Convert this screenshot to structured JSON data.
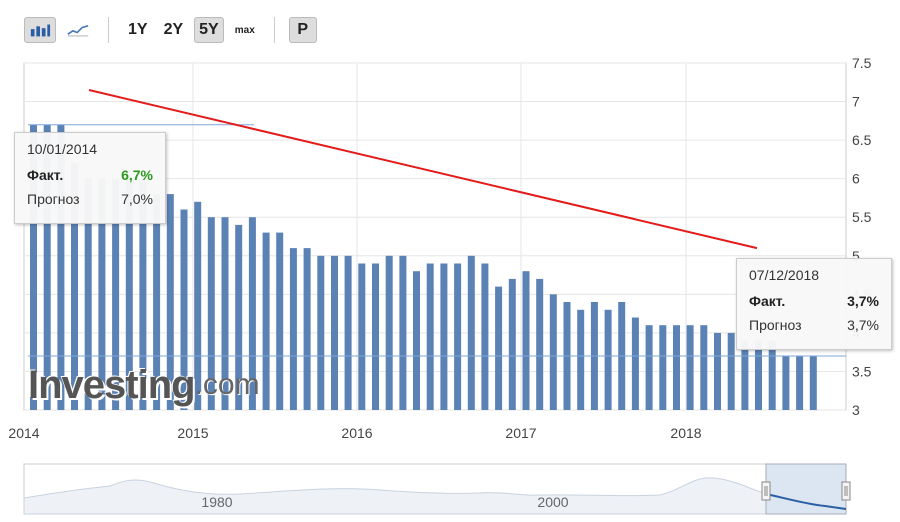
{
  "toolbar": {
    "bar_icon": "bar-chart-icon",
    "line_icon": "line-chart-icon",
    "ranges": [
      "1Y",
      "2Y",
      "5Y",
      "max"
    ],
    "active_range": "5Y",
    "p_label": "P"
  },
  "chart_data": {
    "type": "bar",
    "ylim": [
      3,
      7.5
    ],
    "y_ticks": [
      "3",
      "3.5",
      "4",
      "4.5",
      "5",
      "5.5",
      "6",
      "6.5",
      "7",
      "7.5"
    ],
    "x_tick_labels": [
      "2014",
      "2015",
      "2016",
      "2017",
      "2018"
    ],
    "values": [
      6.7,
      6.7,
      6.7,
      6.2,
      6.0,
      6.0,
      6.0,
      6.0,
      6.0,
      5.8,
      5.8,
      5.6,
      5.7,
      5.5,
      5.5,
      5.4,
      5.5,
      5.3,
      5.3,
      5.1,
      5.1,
      5.0,
      5.0,
      5.0,
      4.9,
      4.9,
      5.0,
      5.0,
      4.8,
      4.9,
      4.9,
      4.9,
      5.0,
      4.9,
      4.6,
      4.7,
      4.8,
      4.7,
      4.5,
      4.4,
      4.3,
      4.4,
      4.3,
      4.4,
      4.2,
      4.1,
      4.1,
      4.1,
      4.1,
      4.1,
      4.0,
      4.0,
      3.9,
      3.9,
      3.9,
      3.7,
      3.7,
      3.7
    ],
    "trend_line": {
      "from": 7.15,
      "to": 5.1
    },
    "bar_color": "#5b82b5",
    "trend_color": "#e31b1b",
    "navigator_labels": [
      "1980",
      "2000"
    ]
  },
  "tooltips": [
    {
      "date": "10/01/2014",
      "fact_label": "Факт.",
      "fact_value": "6,7%",
      "fact_color": "#2a9a1d",
      "forecast_label": "Прогноз",
      "forecast_value": "7,0%"
    },
    {
      "date": "07/12/2018",
      "fact_label": "Факт.",
      "fact_value": "3,7%",
      "fact_color": "#222222",
      "forecast_label": "Прогноз",
      "forecast_value": "3,7%"
    }
  ],
  "logo": {
    "brand": "Investing",
    "domain": ".com"
  }
}
